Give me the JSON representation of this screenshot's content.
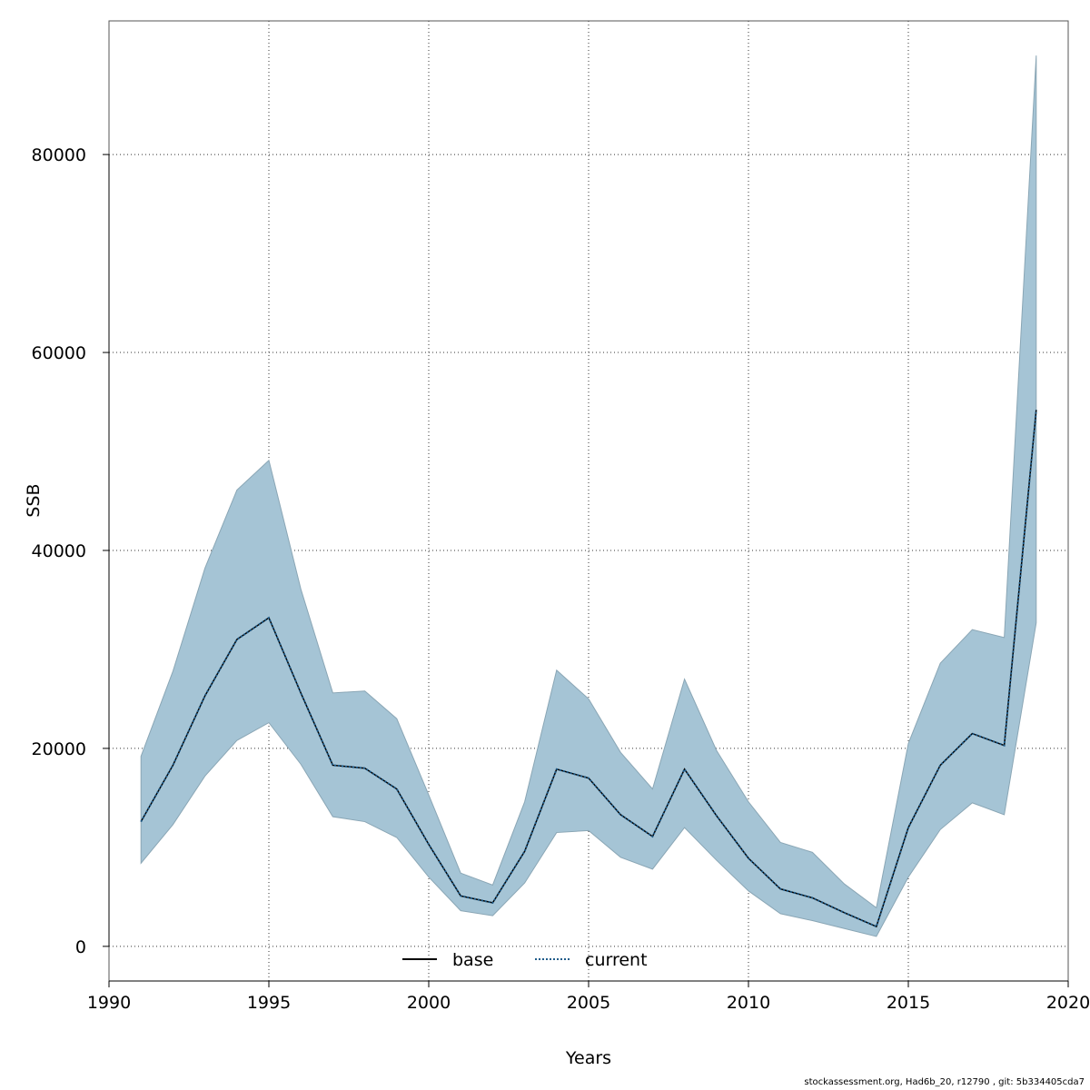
{
  "chart_data": {
    "type": "line",
    "title": "",
    "xlabel": "Years",
    "ylabel": "SSB",
    "xlim": [
      1990,
      2020
    ],
    "ylim": [
      -3500,
      93500
    ],
    "xticks": [
      1990,
      1995,
      2000,
      2005,
      2010,
      2015,
      2020
    ],
    "yticks": [
      0,
      20000,
      40000,
      60000,
      80000
    ],
    "grid": true,
    "legend": "bottom",
    "x": [
      1991,
      1992,
      1993,
      1994,
      1995,
      1996,
      1997,
      1998,
      1999,
      2000,
      2001,
      2002,
      2003,
      2004,
      2005,
      2006,
      2007,
      2008,
      2009,
      2010,
      2011,
      2012,
      2013,
      2014,
      2015,
      2016,
      2017,
      2018,
      2019
    ],
    "series": [
      {
        "name": "base",
        "style": "solid",
        "color": "#000000",
        "values": [
          12600,
          18300,
          25300,
          31000,
          33200,
          25600,
          18300,
          18000,
          15900,
          10300,
          5100,
          4400,
          9600,
          17900,
          17000,
          13300,
          11100,
          17900,
          13200,
          8900,
          5800,
          4900,
          3400,
          2000,
          12000,
          18300,
          21500,
          20300,
          54200
        ]
      },
      {
        "name": "current",
        "style": "dotted",
        "color": "#1f5c8a",
        "values": [
          12600,
          18300,
          25300,
          31000,
          33200,
          25600,
          18300,
          18000,
          15900,
          10300,
          5100,
          4400,
          9600,
          17900,
          17000,
          13300,
          11100,
          17900,
          13200,
          8900,
          5800,
          4900,
          3400,
          2000,
          12000,
          18300,
          21500,
          20300,
          54200
        ]
      }
    ],
    "band": {
      "color": "#a5c4d5",
      "lower": [
        8400,
        12300,
        17200,
        20800,
        22600,
        18400,
        13100,
        12600,
        11000,
        7000,
        3600,
        3100,
        6400,
        11500,
        11700,
        9000,
        7800,
        12000,
        8700,
        5600,
        3300,
        2600,
        1800,
        1000,
        7000,
        11800,
        14500,
        13300,
        32700
      ],
      "upper": [
        19200,
        27800,
        38200,
        46100,
        49100,
        36100,
        25600,
        25800,
        23000,
        15300,
        7400,
        6200,
        14600,
        27900,
        25000,
        19600,
        15900,
        27000,
        19800,
        14600,
        10500,
        9500,
        6300,
        3900,
        20500,
        28600,
        32000,
        31200,
        90000
      ]
    }
  },
  "footer": "stockassessment.org, Had6b_20, r12790 , git: 5b334405cda7"
}
